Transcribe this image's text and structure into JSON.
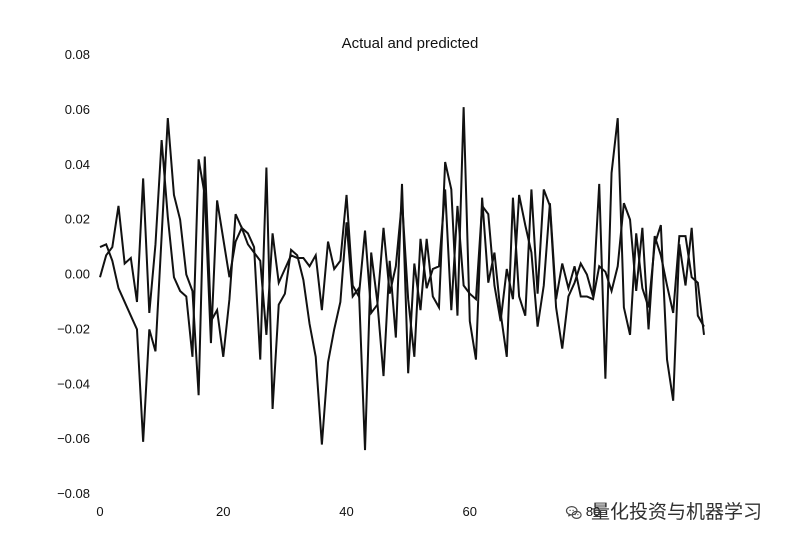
{
  "chart_data": {
    "type": "line",
    "title": "Actual and predicted",
    "xlabel": "",
    "ylabel": "",
    "xlim": [
      0,
      98
    ],
    "ylim": [
      -0.08,
      0.08
    ],
    "grid": false,
    "legend": "none",
    "x_ticks": [
      0,
      20,
      40,
      60,
      80
    ],
    "y_ticks": [
      -0.08,
      -0.06,
      -0.04,
      -0.02,
      0.0,
      0.02,
      0.04,
      0.06,
      0.08
    ],
    "x_tick_labels": [
      "0",
      "20",
      "40",
      "60",
      "80"
    ],
    "y_tick_labels": [
      "−0.08",
      "−0.06",
      "−0.04",
      "−0.02",
      "0.00",
      "0.02",
      "0.04",
      "0.06",
      "0.08"
    ],
    "series": [
      {
        "values": [
          0.01,
          0.011,
          0.005,
          -0.005,
          -0.01,
          -0.015,
          -0.02,
          -0.061,
          -0.02,
          -0.028,
          0.014,
          0.057,
          0.029,
          0.02,
          0.0,
          -0.006,
          -0.044,
          0.043,
          -0.017,
          -0.013,
          -0.03,
          -0.009,
          0.022,
          0.017,
          0.015,
          0.01,
          -0.031,
          0.039,
          -0.049,
          -0.011,
          -0.007,
          0.009,
          0.007,
          -0.002,
          -0.018,
          -0.03,
          -0.062,
          -0.032,
          -0.02,
          -0.01,
          0.019,
          -0.008,
          -0.005,
          -0.064,
          0.008,
          -0.01,
          -0.037,
          0.005,
          -0.023,
          0.033,
          -0.036,
          0.004,
          -0.013,
          0.013,
          -0.008,
          -0.012,
          0.041,
          0.031,
          -0.015,
          0.061,
          -0.017,
          -0.031,
          0.028,
          -0.003,
          0.008,
          -0.014,
          -0.03,
          0.028,
          -0.008,
          -0.015,
          0.031,
          -0.007,
          0.031,
          0.025,
          -0.012,
          -0.027,
          -0.008,
          -0.003,
          0.004,
          0.0,
          -0.008,
          0.033,
          -0.038,
          0.037,
          0.057,
          -0.012,
          -0.022,
          0.015,
          -0.005,
          -0.012,
          0.011,
          0.018,
          -0.031,
          -0.046,
          0.011,
          -0.004,
          0.017,
          -0.015,
          -0.019
        ]
      },
      {
        "values": [
          -0.001,
          0.007,
          0.01,
          0.025,
          0.004,
          0.006,
          -0.01,
          0.035,
          -0.014,
          0.011,
          0.049,
          0.021,
          -0.001,
          -0.006,
          -0.008,
          -0.03,
          0.042,
          0.029,
          -0.025,
          0.027,
          0.013,
          -0.001,
          0.012,
          0.017,
          0.011,
          0.008,
          0.005,
          -0.022,
          0.015,
          -0.003,
          0.002,
          0.007,
          0.006,
          0.006,
          0.003,
          0.007,
          -0.013,
          0.012,
          0.002,
          0.005,
          0.029,
          -0.004,
          -0.008,
          0.016,
          -0.014,
          -0.011,
          0.017,
          -0.007,
          0.003,
          0.027,
          -0.009,
          -0.03,
          0.013,
          -0.005,
          0.002,
          0.003,
          0.031,
          -0.013,
          0.025,
          -0.004,
          -0.007,
          -0.009,
          0.025,
          0.022,
          -0.004,
          -0.017,
          0.002,
          -0.009,
          0.029,
          0.018,
          0.008,
          -0.019,
          -0.004,
          0.026,
          -0.009,
          0.004,
          -0.005,
          0.003,
          -0.008,
          -0.008,
          -0.009,
          0.003,
          0.001,
          -0.006,
          0.003,
          0.026,
          0.02,
          -0.006,
          0.017,
          -0.02,
          0.014,
          0.007,
          -0.004,
          -0.014,
          0.014,
          0.014,
          -0.001,
          -0.003,
          -0.022
        ]
      }
    ]
  },
  "watermark": {
    "text": "量化投资与机器学习",
    "icon": "wechat-icon"
  }
}
